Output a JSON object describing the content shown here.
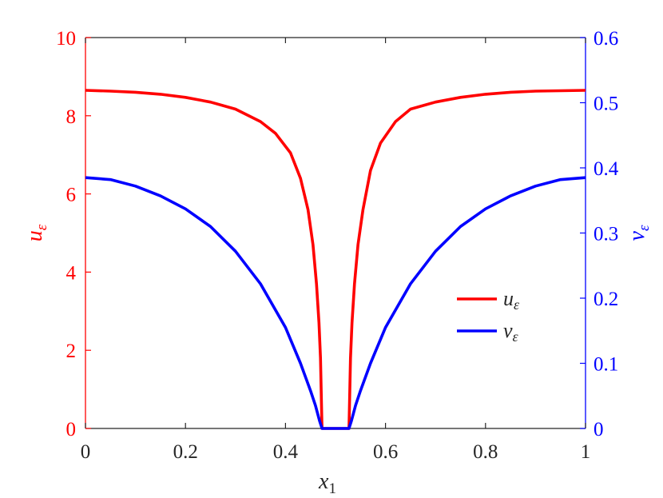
{
  "chart_data": {
    "type": "line",
    "xlabel": "x1",
    "xlim": [
      0,
      1
    ],
    "x_ticks": [
      0,
      0.2,
      0.4,
      0.6,
      0.8,
      1
    ],
    "x_tick_labels": [
      "0",
      "0.2",
      "0.4",
      "0.6",
      "0.8",
      "1"
    ],
    "left_axis": {
      "label": "uε",
      "color": "#ff0000",
      "ylim": [
        0,
        10
      ],
      "ticks": [
        0,
        2,
        4,
        6,
        8,
        10
      ],
      "tick_labels": [
        "0",
        "2",
        "4",
        "6",
        "8",
        "10"
      ]
    },
    "right_axis": {
      "label": "vε",
      "color": "#0000ff",
      "ylim": [
        0,
        0.6
      ],
      "ticks": [
        0,
        0.1,
        0.2,
        0.3,
        0.4,
        0.5,
        0.6
      ],
      "tick_labels": [
        "0",
        "0.1",
        "0.2",
        "0.3",
        "0.4",
        "0.5",
        "0.6"
      ]
    },
    "series": [
      {
        "name": "uε",
        "axis": "left",
        "color": "#ff0000",
        "x": [
          0,
          0.05,
          0.1,
          0.15,
          0.2,
          0.25,
          0.3,
          0.35,
          0.38,
          0.41,
          0.43,
          0.445,
          0.455,
          0.462,
          0.467,
          0.47,
          0.473,
          0.5,
          0.527,
          0.53,
          0.533,
          0.538,
          0.545,
          0.555,
          0.57,
          0.59,
          0.62,
          0.65,
          0.7,
          0.75,
          0.8,
          0.85,
          0.9,
          0.95,
          1
        ],
        "y": [
          8.65,
          8.63,
          8.6,
          8.55,
          8.47,
          8.35,
          8.17,
          7.85,
          7.55,
          7.05,
          6.4,
          5.6,
          4.7,
          3.7,
          2.7,
          1.8,
          0,
          0,
          0,
          1.8,
          2.7,
          3.7,
          4.7,
          5.6,
          6.6,
          7.3,
          7.85,
          8.17,
          8.35,
          8.47,
          8.55,
          8.6,
          8.63,
          8.64,
          8.65
        ]
      },
      {
        "name": "vε",
        "axis": "right",
        "color": "#0000ff",
        "x": [
          0,
          0.05,
          0.1,
          0.15,
          0.2,
          0.25,
          0.3,
          0.35,
          0.4,
          0.43,
          0.45,
          0.46,
          0.468,
          0.473,
          0.5,
          0.527,
          0.532,
          0.54,
          0.55,
          0.57,
          0.6,
          0.65,
          0.7,
          0.75,
          0.8,
          0.85,
          0.9,
          0.95,
          1
        ],
        "y": [
          0.385,
          0.382,
          0.372,
          0.357,
          0.337,
          0.31,
          0.272,
          0.222,
          0.155,
          0.1,
          0.058,
          0.035,
          0.012,
          0,
          0,
          0,
          0.012,
          0.035,
          0.058,
          0.1,
          0.155,
          0.222,
          0.272,
          0.31,
          0.337,
          0.357,
          0.372,
          0.382,
          0.385
        ]
      }
    ],
    "legend": {
      "placement": "center-right",
      "entries": [
        "uε",
        "vε"
      ]
    },
    "grid": false
  }
}
